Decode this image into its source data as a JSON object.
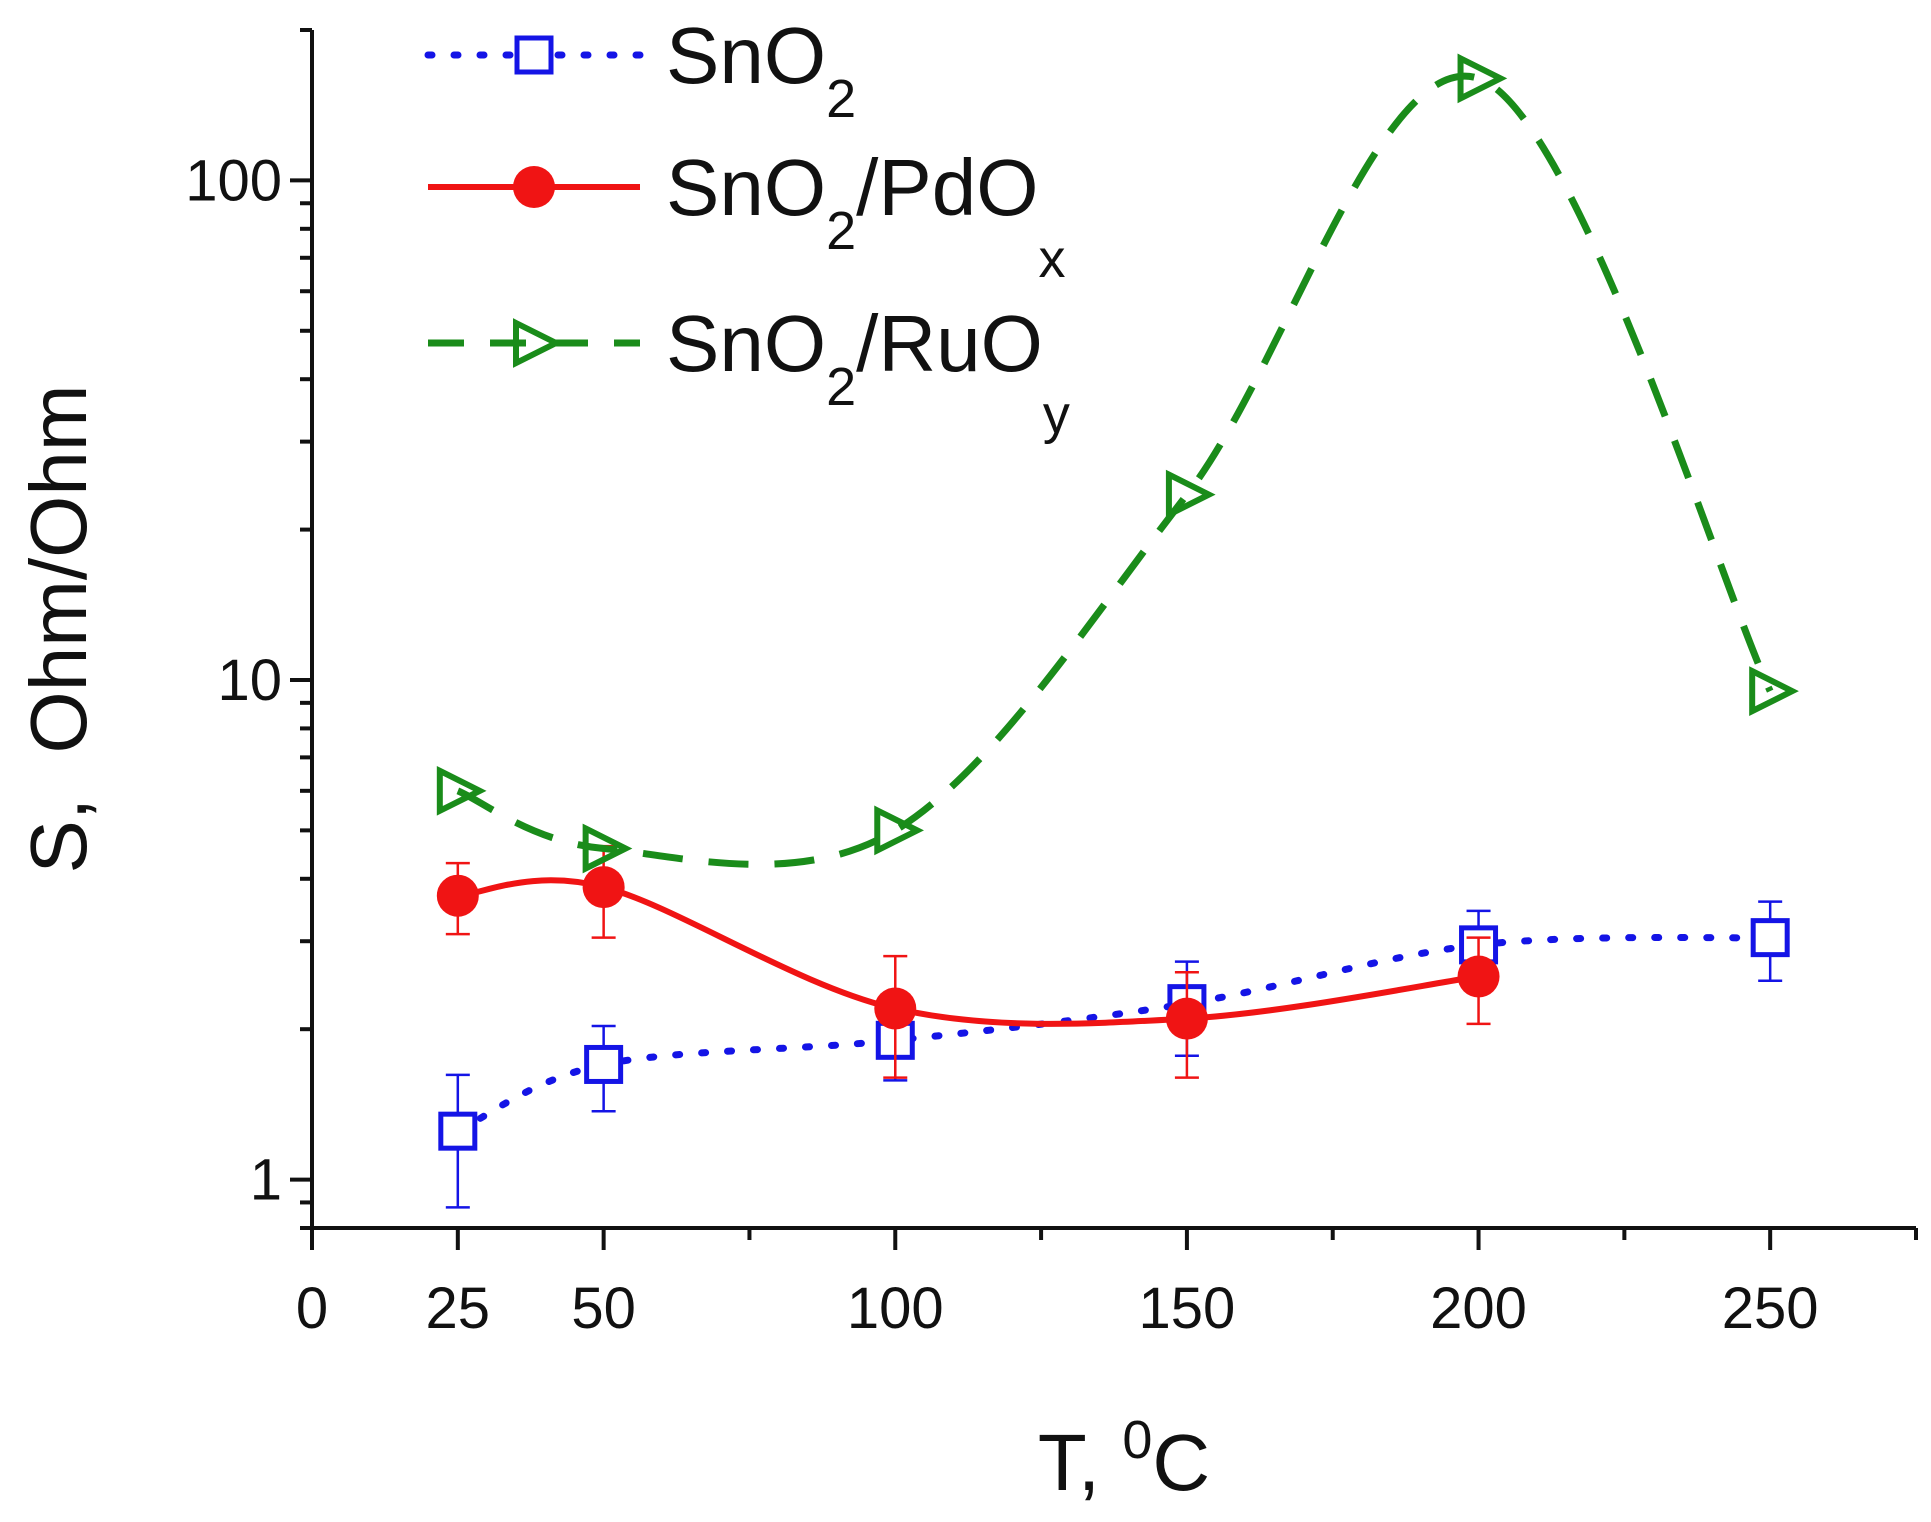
{
  "chart_data": {
    "type": "line",
    "title": "",
    "xlabel": {
      "base": "T, ",
      "sup": "0",
      "unit": "C"
    },
    "ylabel": "S,  Ohm/Ohm",
    "x_scale": "linear",
    "y_scale": "log",
    "xlim": [
      0,
      275
    ],
    "ylim": [
      0.8,
      200
    ],
    "xticks": [
      0,
      25,
      50,
      100,
      150,
      200,
      250
    ],
    "xtick_labels": [
      "0",
      "25",
      "50",
      "100",
      "150",
      "200",
      "250"
    ],
    "x_minor_ticks": [
      75,
      125,
      175,
      225,
      275
    ],
    "yticks": [
      1,
      10,
      100
    ],
    "ytick_labels": [
      "1",
      "10",
      "100"
    ],
    "legend_position": "top-left",
    "series": [
      {
        "name": "SnO2",
        "label": {
          "base": "SnO",
          "sub": "2",
          "rest": "",
          "sub2": ""
        },
        "color": "#1414e6",
        "line_style": "dotted",
        "marker": "open-square",
        "x": [
          25,
          50,
          100,
          150,
          200,
          250
        ],
        "y": [
          1.25,
          1.7,
          1.9,
          2.25,
          2.95,
          3.05
        ],
        "err": [
          0.37,
          0.33,
          0.32,
          0.48,
          0.5,
          0.55
        ]
      },
      {
        "name": "SnO2/PdOx",
        "label": {
          "base": "SnO",
          "sub": "2",
          "rest": "/PdO",
          "sub2": "x"
        },
        "color": "#f01414",
        "line_style": "solid",
        "marker": "filled-circle",
        "x": [
          25,
          50,
          100,
          150,
          200
        ],
        "y": [
          3.7,
          3.85,
          2.2,
          2.1,
          2.55
        ],
        "err": [
          0.6,
          0.8,
          0.6,
          0.5,
          0.5
        ]
      },
      {
        "name": "SnO2/RuOy",
        "label": {
          "base": "SnO",
          "sub": "2",
          "rest": "/RuO",
          "sub2": "y"
        },
        "color": "#1a8c1a",
        "line_style": "dashed",
        "marker": "open-triangle-right",
        "x": [
          25,
          50,
          100,
          150,
          200,
          250
        ],
        "y": [
          6.0,
          4.6,
          5.0,
          23.5,
          160,
          9.5
        ],
        "err": [
          0,
          0,
          0,
          0,
          0,
          0
        ]
      }
    ]
  }
}
